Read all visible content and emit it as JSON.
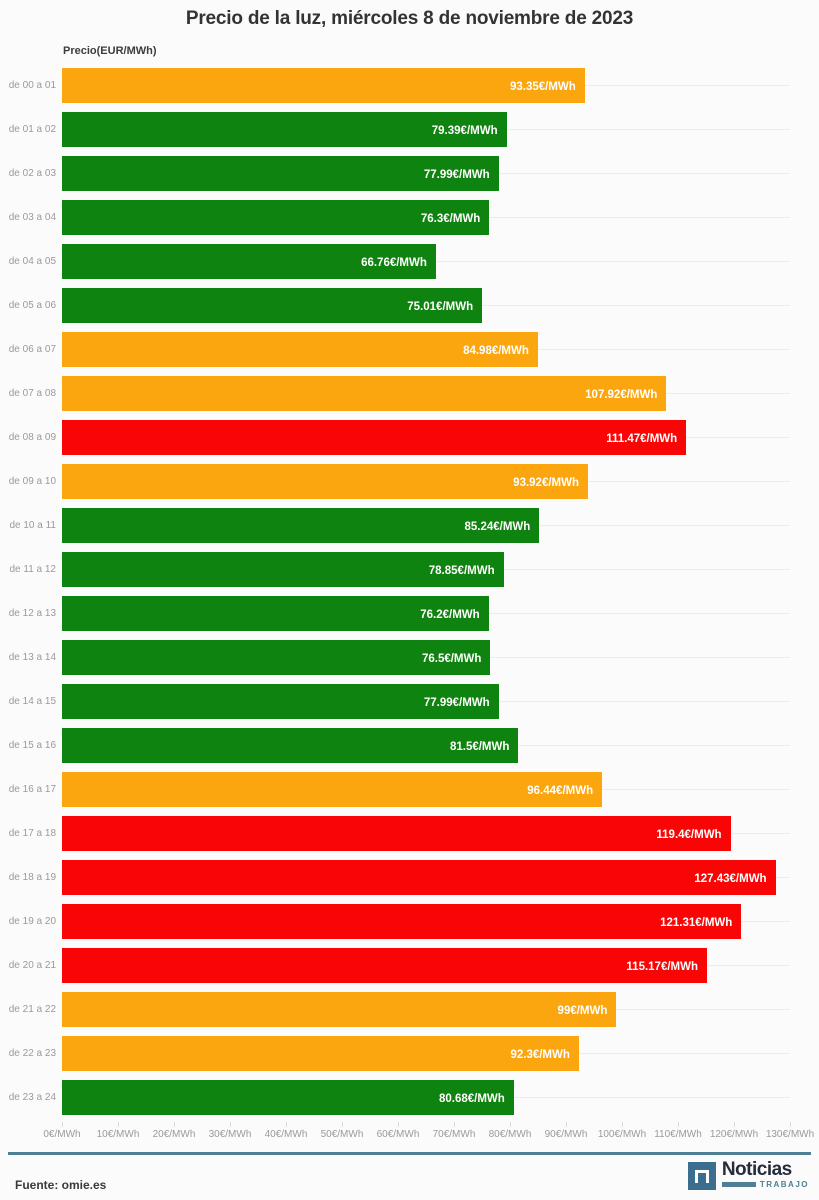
{
  "title": "Precio de la luz, miércoles 8 de noviembre de 2023",
  "axis_label": "Precio(EUR/MWh)",
  "colors": {
    "green": "#0f830f",
    "orange": "#fba50f",
    "red": "#fa0505",
    "background": "#fbfbfb",
    "gridline": "#ececec",
    "tick_label": "#9a9a9a",
    "divider": "#4e7f94",
    "logo_blue": "#3a6d8e",
    "logo_navy": "#252c3c"
  },
  "chart_data": {
    "type": "bar",
    "orientation": "horizontal",
    "title": "Precio de la luz, miércoles 8 de noviembre de 2023",
    "xlabel": "",
    "ylabel": "Precio(EUR/MWh)",
    "xlim": [
      0,
      130
    ],
    "grid": true,
    "legend": false,
    "x_ticks": [
      "0€/MWh",
      "10€/MWh",
      "20€/MWh",
      "30€/MWh",
      "40€/MWh",
      "50€/MWh",
      "60€/MWh",
      "70€/MWh",
      "80€/MWh",
      "90€/MWh",
      "100€/MWh",
      "110€/MWh",
      "120€/MWh",
      "130€/MWh"
    ],
    "x_tick_values": [
      0,
      10,
      20,
      30,
      40,
      50,
      60,
      70,
      80,
      90,
      100,
      110,
      120,
      130
    ],
    "categories": [
      "de 00 a 01",
      "de 01 a 02",
      "de 02 a 03",
      "de 03 a 04",
      "de 04 a 05",
      "de 05 a 06",
      "de 06 a 07",
      "de 07 a 08",
      "de 08 a 09",
      "de 09 a 10",
      "de 10 a 11",
      "de 11 a 12",
      "de 12 a 13",
      "de 13 a 14",
      "de 14 a 15",
      "de 15 a 16",
      "de 16 a 17",
      "de 17 a 18",
      "de 18 a 19",
      "de 19 a 20",
      "de 20 a 21",
      "de 21 a 22",
      "de 22 a 23",
      "de 23 a 24"
    ],
    "values": [
      93.35,
      79.39,
      77.99,
      76.3,
      66.76,
      75.01,
      84.98,
      107.92,
      111.47,
      93.92,
      85.24,
      78.85,
      76.2,
      76.5,
      77.99,
      81.5,
      96.44,
      119.4,
      127.43,
      121.31,
      115.17,
      99,
      92.3,
      80.68
    ],
    "value_labels": [
      "93.35€/MWh",
      "79.39€/MWh",
      "77.99€/MWh",
      "76.3€/MWh",
      "66.76€/MWh",
      "75.01€/MWh",
      "84.98€/MWh",
      "107.92€/MWh",
      "111.47€/MWh",
      "93.92€/MWh",
      "85.24€/MWh",
      "78.85€/MWh",
      "76.2€/MWh",
      "76.5€/MWh",
      "77.99€/MWh",
      "81.5€/MWh",
      "96.44€/MWh",
      "119.4€/MWh",
      "127.43€/MWh",
      "121.31€/MWh",
      "115.17€/MWh",
      "99€/MWh",
      "92.3€/MWh",
      "80.68€/MWh"
    ],
    "bar_colors": [
      "orange",
      "green",
      "green",
      "green",
      "green",
      "green",
      "orange",
      "orange",
      "red",
      "orange",
      "green",
      "green",
      "green",
      "green",
      "green",
      "green",
      "orange",
      "red",
      "red",
      "red",
      "red",
      "orange",
      "orange",
      "green"
    ]
  },
  "footer": {
    "source": "Fuente: omie.es",
    "logo_name": "Noticias",
    "logo_sub": "TRABAJO"
  }
}
